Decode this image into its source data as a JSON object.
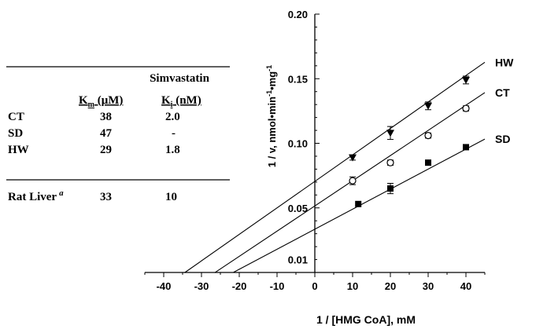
{
  "chart_data": {
    "type": "scatter",
    "subtype": "lineweaver-burk plot with regression lines",
    "xlabel": "1 /  [HMG CoA], mM",
    "ylabel": "1 /  v, nmol•min-1•mg-1",
    "ylabel_parts": {
      "prefix": "1 /  v, nmol•min",
      "sup1": "-1",
      "mid": "•mg",
      "sup2": "-1"
    },
    "xlim": [
      -45,
      45
    ],
    "ylim": [
      0.0,
      0.2
    ],
    "x_ticks": [
      -40,
      -30,
      -20,
      -10,
      0,
      10,
      20,
      30,
      40
    ],
    "y_ticks": [
      0.01,
      0.05,
      0.1,
      0.15,
      0.2
    ],
    "y_tick_labels": [
      "0.01",
      "0.05",
      "0.10",
      "0.15",
      "0.20"
    ],
    "grid": false,
    "series": [
      {
        "name": "HW",
        "marker": "triangle-down-filled",
        "x": [
          10,
          20,
          30,
          40
        ],
        "y": [
          0.089,
          0.108,
          0.129,
          0.149
        ],
        "yerr": [
          0.002,
          0.005,
          0.003,
          0.003
        ],
        "fit_x_range": [
          -34.5,
          45
        ],
        "fit": {
          "slope": 0.00205,
          "intercept": 0.0705
        }
      },
      {
        "name": "CT",
        "marker": "circle-open",
        "x": [
          10,
          20,
          30,
          40
        ],
        "y": [
          0.071,
          0.085,
          0.106,
          0.127
        ],
        "yerr": [
          0.003,
          0.002,
          0.002,
          0.002
        ],
        "fit_x_range": [
          -26.5,
          45
        ],
        "fit": {
          "slope": 0.00195,
          "intercept": 0.0515
        }
      },
      {
        "name": "SD",
        "marker": "square-filled",
        "x": [
          11.5,
          20,
          30,
          40
        ],
        "y": [
          0.053,
          0.065,
          0.085,
          0.097
        ],
        "yerr": [
          0.0,
          0.004,
          0.002,
          0.001
        ],
        "fit_x_range": [
          -21.5,
          45
        ],
        "fit": {
          "slope": 0.00155,
          "intercept": 0.0335
        }
      }
    ]
  },
  "table": {
    "header_top": "Simvastatin",
    "col1_base": "K",
    "col1_sub": "m",
    "col1_unit": " (μM)",
    "col2_base": "K",
    "col2_sub": "i",
    "col2_unit": " (nM)",
    "rows": [
      {
        "label": "CT",
        "km": "38",
        "ki": "2.0"
      },
      {
        "label": "SD",
        "km": "47",
        "ki": "-"
      },
      {
        "label": "HW",
        "km": "29",
        "ki": "1.8"
      }
    ],
    "footer_row": {
      "label": "Rat Liver",
      "note": "a",
      "km": "33",
      "ki": "10"
    }
  }
}
